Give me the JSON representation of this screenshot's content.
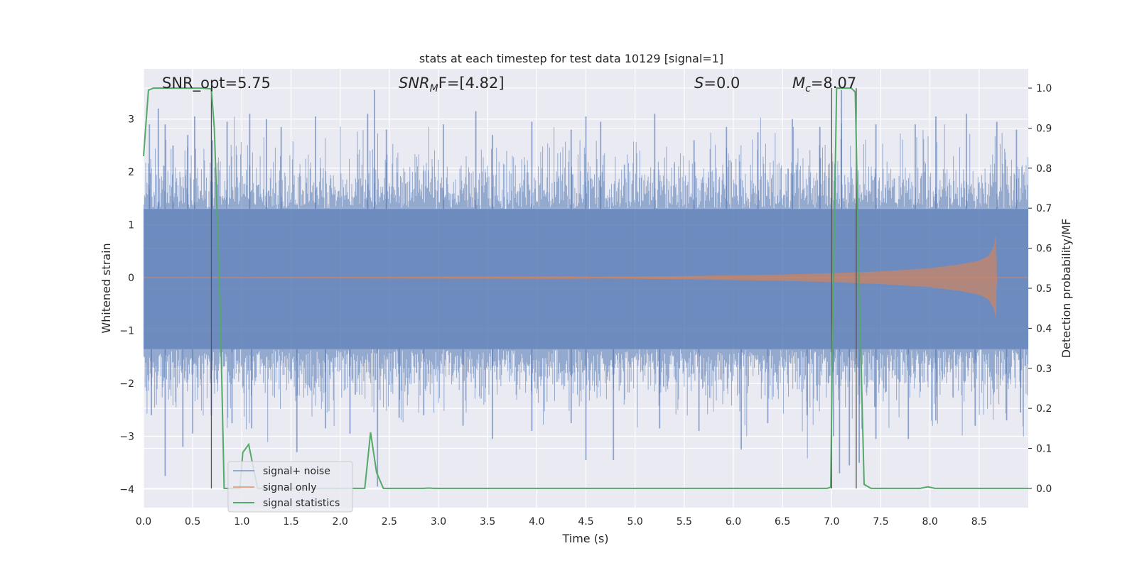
{
  "chart_data": {
    "type": "line",
    "title": "stats at each timestep for test data 10129 [signal=1]",
    "xlabel": "Time (s)",
    "ylabel": "Whitened strain",
    "y2label": "Detection probability/MF",
    "xlim": [
      0.0,
      9.0
    ],
    "ylim": [
      -4.35,
      3.95
    ],
    "y2lim": [
      -0.048,
      1.048
    ],
    "xticks": [
      "0.0",
      "0.5",
      "1.0",
      "1.5",
      "2.0",
      "2.5",
      "3.0",
      "3.5",
      "4.0",
      "4.5",
      "5.0",
      "5.5",
      "6.0",
      "6.5",
      "7.0",
      "7.5",
      "8.0",
      "8.5"
    ],
    "yticks": [
      "3",
      "2",
      "1",
      "0",
      "−1",
      "−2",
      "−3",
      "−4"
    ],
    "y2ticks": [
      "1.0",
      "0.9",
      "0.8",
      "0.7",
      "0.6",
      "0.5",
      "0.4",
      "0.3",
      "0.2",
      "0.1",
      "0.0"
    ],
    "grid": true,
    "legend_position": "lower-left",
    "annotations": {
      "snr_opt": "SNR_opt=5.75",
      "snr_mf_base": "SNR",
      "snr_mf_sub": "M",
      "snr_mf_rest": "F=[4.82]",
      "s_var": "S",
      "s_rest": "=0.0",
      "mc_base": "M",
      "mc_sub": "c",
      "mc_rest": "=8.07"
    },
    "vlines_x": [
      0.69,
      7.0,
      7.25
    ],
    "series": [
      {
        "name": "signal+ noise",
        "color": "#4c72b0",
        "band_upper_typical": 1.3,
        "band_lower_typical": -1.35,
        "peak_spikes": [
          [
            0.06,
            2.9
          ],
          [
            0.15,
            3.2
          ],
          [
            0.22,
            2.9
          ],
          [
            0.3,
            2.5
          ],
          [
            0.45,
            2.7
          ],
          [
            0.52,
            3.05
          ],
          [
            0.7,
            2.6
          ],
          [
            0.85,
            2.95
          ],
          [
            1.08,
            3.1
          ],
          [
            1.25,
            3.0
          ],
          [
            1.4,
            2.85
          ],
          [
            1.75,
            3.05
          ],
          [
            2.28,
            3.1
          ],
          [
            2.35,
            3.55
          ],
          [
            2.47,
            2.8
          ],
          [
            3.05,
            2.9
          ],
          [
            3.38,
            3.15
          ],
          [
            3.55,
            2.7
          ],
          [
            3.95,
            2.95
          ],
          [
            4.35,
            2.8
          ],
          [
            4.5,
            3.05
          ],
          [
            4.65,
            2.95
          ],
          [
            5.2,
            3.1
          ],
          [
            5.6,
            2.6
          ],
          [
            5.93,
            2.85
          ],
          [
            6.25,
            2.75
          ],
          [
            6.6,
            3.0
          ],
          [
            6.88,
            2.85
          ],
          [
            7.1,
            3.55
          ],
          [
            7.45,
            2.9
          ],
          [
            7.85,
            2.9
          ],
          [
            8.06,
            3.05
          ],
          [
            8.37,
            3.1
          ],
          [
            8.68,
            2.95
          ],
          [
            8.88,
            2.8
          ]
        ],
        "trough_spikes": [
          [
            0.08,
            -2.6
          ],
          [
            0.22,
            -3.75
          ],
          [
            0.4,
            -3.2
          ],
          [
            0.5,
            -2.95
          ],
          [
            0.69,
            -2.6
          ],
          [
            0.9,
            -2.75
          ],
          [
            1.1,
            -2.85
          ],
          [
            1.56,
            -3.3
          ],
          [
            1.85,
            -2.85
          ],
          [
            2.1,
            -2.95
          ],
          [
            2.38,
            -3.95
          ],
          [
            2.6,
            -2.65
          ],
          [
            2.85,
            -2.6
          ],
          [
            3.25,
            -2.8
          ],
          [
            3.55,
            -3.05
          ],
          [
            3.95,
            -2.9
          ],
          [
            4.35,
            -2.75
          ],
          [
            4.5,
            -3.45
          ],
          [
            4.78,
            -3.45
          ],
          [
            5.25,
            -2.85
          ],
          [
            5.65,
            -2.9
          ],
          [
            6.08,
            -3.25
          ],
          [
            6.35,
            -2.75
          ],
          [
            6.75,
            -2.6
          ],
          [
            7.02,
            -3.0
          ],
          [
            7.08,
            -3.7
          ],
          [
            7.18,
            -3.55
          ],
          [
            7.28,
            -3.5
          ],
          [
            7.45,
            -3.05
          ],
          [
            7.78,
            -3.05
          ],
          [
            8.06,
            -2.7
          ],
          [
            8.46,
            -2.8
          ],
          [
            8.78,
            -2.7
          ],
          [
            8.92,
            -2.55
          ]
        ]
      },
      {
        "name": "signal only",
        "color": "#dd8452",
        "amplitude": [
          [
            0.0,
            0.0
          ],
          [
            4.5,
            0.012
          ],
          [
            5.5,
            0.03
          ],
          [
            6.5,
            0.06
          ],
          [
            7.0,
            0.085
          ],
          [
            7.5,
            0.12
          ],
          [
            8.0,
            0.18
          ],
          [
            8.3,
            0.25
          ],
          [
            8.5,
            0.32
          ],
          [
            8.6,
            0.42
          ],
          [
            8.65,
            0.6
          ],
          [
            8.67,
            0.8
          ],
          [
            8.68,
            0.0
          ],
          [
            9.0,
            0.0
          ]
        ]
      },
      {
        "name": "signal statistics",
        "color": "#55a868",
        "axis": "right",
        "points": [
          [
            0.0,
            0.83
          ],
          [
            0.05,
            0.995
          ],
          [
            0.1,
            1.0
          ],
          [
            0.6,
            1.0
          ],
          [
            0.69,
            0.998
          ],
          [
            0.72,
            0.9
          ],
          [
            0.78,
            0.45
          ],
          [
            0.82,
            0.0
          ],
          [
            0.98,
            0.0
          ],
          [
            1.01,
            0.09
          ],
          [
            1.07,
            0.11
          ],
          [
            1.11,
            0.06
          ],
          [
            1.16,
            0.0
          ],
          [
            2.25,
            0.0
          ],
          [
            2.31,
            0.14
          ],
          [
            2.37,
            0.04
          ],
          [
            2.44,
            0.0
          ],
          [
            2.85,
            0.0
          ],
          [
            2.9,
            0.001
          ],
          [
            2.95,
            0.0
          ],
          [
            6.95,
            0.0
          ],
          [
            6.99,
            0.003
          ],
          [
            7.01,
            0.4
          ],
          [
            7.05,
            1.0
          ],
          [
            7.2,
            1.0
          ],
          [
            7.24,
            0.99
          ],
          [
            7.28,
            0.5
          ],
          [
            7.33,
            0.01
          ],
          [
            7.4,
            0.0
          ],
          [
            7.9,
            0.0
          ],
          [
            7.98,
            0.004
          ],
          [
            8.05,
            0.0
          ],
          [
            9.0,
            0.0
          ]
        ]
      }
    ]
  }
}
